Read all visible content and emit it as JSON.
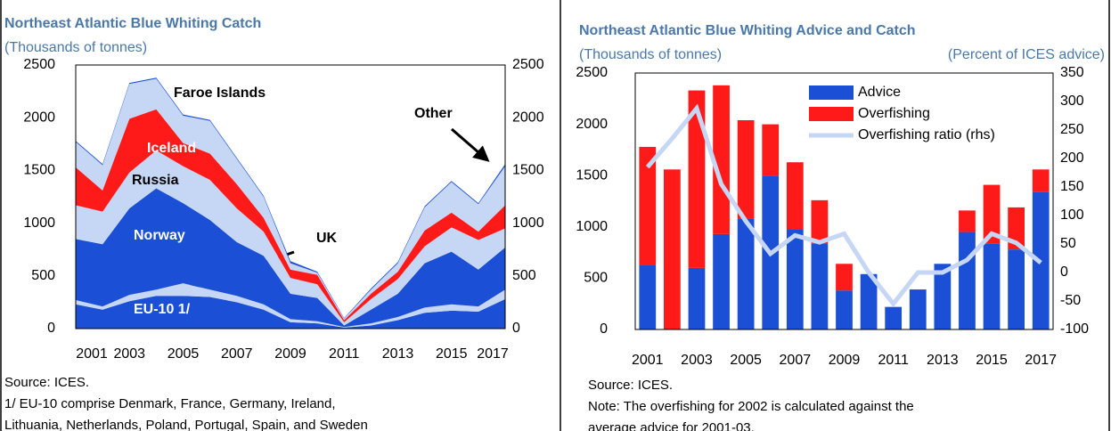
{
  "chart_data": [
    {
      "type": "area",
      "title": "Northeast Atlantic Blue Whiting Catch",
      "subtitle": "(Thousands of tonnes)",
      "x": [
        2001,
        2002,
        2003,
        2004,
        2005,
        2006,
        2007,
        2008,
        2009,
        2010,
        2011,
        2012,
        2013,
        2014,
        2015,
        2016,
        2017
      ],
      "xlim": [
        2001,
        2017
      ],
      "xticks": [
        2001,
        2003,
        2005,
        2007,
        2009,
        2011,
        2013,
        2015,
        2017
      ],
      "ylim": [
        0,
        2500
      ],
      "yticks": [
        0,
        500,
        1000,
        1500,
        2000,
        2500
      ],
      "y2lim": [
        0,
        2500
      ],
      "y2ticks": [
        0,
        500,
        1000,
        1500,
        2000,
        2500
      ],
      "series": [
        {
          "name": "EU-10  1/",
          "color": "#1a4fd6",
          "values": [
            230,
            180,
            260,
            310,
            310,
            300,
            250,
            180,
            60,
            50,
            10,
            30,
            80,
            150,
            170,
            160,
            280
          ]
        },
        {
          "name": "UK",
          "color": "#c6d6f5",
          "values": [
            40,
            30,
            60,
            60,
            120,
            70,
            60,
            50,
            30,
            20,
            5,
            20,
            30,
            50,
            60,
            50,
            90
          ]
        },
        {
          "name": "Norway",
          "color": "#1a4fd6",
          "values": [
            580,
            590,
            820,
            960,
            760,
            660,
            510,
            460,
            240,
            220,
            15,
            130,
            220,
            420,
            500,
            350,
            400
          ]
        },
        {
          "name": "Russia",
          "color": "#c6d6f5",
          "values": [
            320,
            310,
            340,
            360,
            350,
            380,
            320,
            230,
            150,
            130,
            30,
            100,
            140,
            160,
            230,
            280,
            180
          ]
        },
        {
          "name": "Iceland",
          "color": "#ff1a1a",
          "values": [
            360,
            200,
            510,
            390,
            220,
            250,
            230,
            130,
            80,
            90,
            20,
            50,
            70,
            150,
            140,
            80,
            220
          ]
        },
        {
          "name": "Faroe Islands",
          "color": "#c6d6f5",
          "values": [
            240,
            240,
            330,
            290,
            260,
            310,
            240,
            200,
            60,
            20,
            15,
            40,
            80,
            220,
            290,
            260,
            370
          ]
        },
        {
          "name": "Other",
          "color": "#1a4fd6",
          "values": [
            10,
            10,
            10,
            10,
            10,
            10,
            10,
            10,
            20,
            10,
            5,
            10,
            10,
            10,
            10,
            10,
            20
          ]
        }
      ],
      "notes": [
        "Source: ICES.",
        "1/ EU-10 comprise Denmark, France, Germany, Ireland,",
        "Lithuania, Netherlands, Poland, Portugal, Spain, and Sweden"
      ]
    },
    {
      "type": "bar",
      "title": "Northeast Atlantic Blue Whiting Advice and Catch",
      "subtitle": "(Thousands of tonnes)",
      "y2label": "(Percent of ICES advice)",
      "categories": [
        2001,
        null,
        2003,
        null,
        2005,
        null,
        2007,
        null,
        2009,
        null,
        2011,
        null,
        2013,
        null,
        2015,
        null,
        2017
      ],
      "ylim": [
        0,
        2500
      ],
      "yticks": [
        0,
        500,
        1000,
        1500,
        2000,
        2500
      ],
      "y2lim": [
        -100,
        350
      ],
      "y2ticks": [
        -100,
        -50,
        0,
        50,
        100,
        150,
        200,
        250,
        300,
        350
      ],
      "legend": "top-right",
      "series": [
        {
          "name": "Advice",
          "color": "#1a4fd6",
          "values": [
            630,
            0,
            600,
            930,
            1080,
            1500,
            980,
            840,
            380,
            540,
            220,
            390,
            640,
            950,
            840,
            780,
            1340
          ]
        },
        {
          "name": "Overfishing",
          "color": "#ff1a1a",
          "values": [
            1150,
            1560,
            1730,
            1450,
            960,
            500,
            650,
            420,
            260,
            0,
            0,
            0,
            0,
            210,
            570,
            410,
            220
          ]
        },
        {
          "name": "Overfishing ratio (rhs)",
          "color": "#c6d6f5",
          "axis": "y2",
          "values": [
            185,
            235,
            288,
            155,
            90,
            33,
            65,
            53,
            68,
            0,
            -55,
            0,
            0,
            22,
            68,
            52,
            17
          ]
        }
      ],
      "notes": [
        "Source: ICES.",
        "Note: The overfishing for 2002 is calculated against the",
        "average advice for 2001-03."
      ]
    }
  ]
}
